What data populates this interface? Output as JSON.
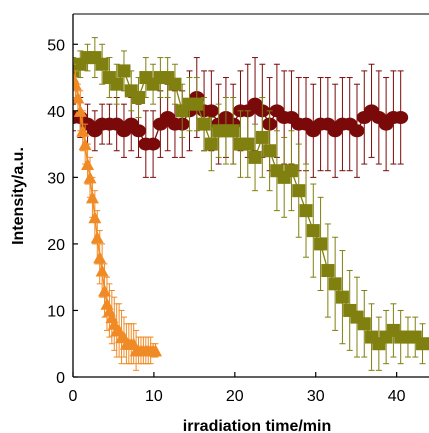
{
  "chart_data": {
    "type": "scatter",
    "title": "",
    "xlabel": "irradiation time/min",
    "ylabel": "Intensity/a.u.",
    "xlim": [
      0,
      44
    ],
    "ylim": [
      0,
      55
    ],
    "xticks": [
      0,
      10,
      20,
      30,
      40
    ],
    "yticks": [
      0,
      10,
      20,
      30,
      40,
      50
    ],
    "grid": false,
    "legend": "none",
    "series": [
      {
        "marker": "circle",
        "color": "#7a0a0a",
        "x": [
          0,
          0.9,
          1.8,
          2.7,
          3.6,
          4.5,
          5.4,
          6.3,
          7.2,
          8.1,
          9.0,
          9.9,
          10.8,
          11.7,
          12.6,
          13.5,
          14.4,
          15.3,
          16.2,
          17.1,
          18.0,
          18.9,
          19.8,
          20.7,
          21.6,
          22.5,
          23.4,
          24.3,
          25.2,
          26.1,
          27.0,
          27.9,
          28.8,
          29.7,
          30.6,
          31.5,
          32.4,
          33.3,
          34.2,
          35.1,
          36.0,
          36.9,
          37.8,
          38.7,
          39.6,
          40.5
        ],
        "y": [
          39,
          39,
          38,
          37,
          38,
          38,
          38,
          37,
          38,
          37,
          35,
          35,
          38,
          39,
          38,
          38,
          40,
          42,
          40,
          40,
          38,
          39,
          38,
          40,
          40,
          41,
          40,
          38,
          40,
          39,
          39,
          38,
          38,
          37,
          38,
          38,
          37,
          38,
          38,
          37,
          39,
          40,
          39,
          38,
          39,
          39
        ],
        "err": [
          2,
          3,
          3,
          3,
          3,
          3,
          4,
          4,
          4,
          4,
          5,
          5,
          5,
          5,
          5,
          5,
          6,
          6,
          6,
          6,
          6,
          6,
          6,
          6,
          7,
          7,
          7,
          7,
          7,
          7,
          7,
          7,
          7,
          7,
          7,
          7,
          7,
          7,
          7,
          7,
          7,
          7,
          7,
          7,
          7,
          7
        ]
      },
      {
        "marker": "square",
        "color": "#808010",
        "x": [
          0,
          0.9,
          1.8,
          2.7,
          3.6,
          4.5,
          5.4,
          6.3,
          7.2,
          8.1,
          9.0,
          9.9,
          10.8,
          11.7,
          12.6,
          13.5,
          14.4,
          15.3,
          16.2,
          17.1,
          18.0,
          18.9,
          19.8,
          20.7,
          21.6,
          22.5,
          23.4,
          24.3,
          25.2,
          26.1,
          27.0,
          27.9,
          28.8,
          29.7,
          30.6,
          31.5,
          32.4,
          33.3,
          34.2,
          35.1,
          36.0,
          36.9,
          37.8,
          38.7,
          39.6,
          40.5,
          41.4,
          42.3,
          43.2
        ],
        "y": [
          46,
          47,
          48,
          48,
          47,
          45,
          44,
          46,
          43,
          42,
          45,
          44,
          45,
          45,
          44,
          40,
          41,
          41,
          38,
          35,
          37,
          37,
          37,
          35,
          35,
          33,
          36,
          34,
          31,
          30,
          31,
          28,
          25,
          22,
          20,
          16,
          14,
          12,
          10,
          9,
          8,
          6,
          5,
          6,
          7,
          6,
          6,
          6,
          5
        ],
        "err": [
          2,
          2,
          2,
          3,
          3,
          3,
          3,
          3,
          3,
          3,
          3,
          3,
          3,
          3,
          3,
          4,
          4,
          4,
          4,
          4,
          4,
          5,
          5,
          5,
          5,
          5,
          6,
          6,
          6,
          6,
          6,
          7,
          7,
          7,
          7,
          7,
          7,
          7,
          6,
          6,
          5,
          5,
          4,
          4,
          4,
          4,
          3,
          3,
          3
        ]
      },
      {
        "marker": "triangle",
        "color": "#f08a24",
        "x": [
          0,
          0.3,
          0.6,
          0.9,
          1.2,
          1.5,
          1.8,
          2.1,
          2.4,
          2.7,
          3.0,
          3.3,
          3.6,
          3.9,
          4.2,
          4.5,
          4.8,
          5.1,
          5.4,
          5.7,
          6.0,
          6.3,
          6.6,
          6.9,
          7.2,
          7.5,
          7.8,
          8.1,
          8.4,
          8.7,
          9.0,
          9.3,
          9.6,
          9.9,
          10.2
        ],
        "y": [
          45,
          44,
          42,
          40,
          37,
          35,
          32,
          30,
          27,
          24,
          21,
          18,
          16,
          13,
          11,
          10,
          9,
          8,
          7,
          7,
          6,
          6,
          5,
          5,
          5,
          5,
          4,
          4,
          4,
          4,
          4,
          4,
          4,
          4,
          4
        ],
        "err": [
          2,
          2,
          2,
          3,
          3,
          3,
          3,
          3,
          3,
          4,
          4,
          4,
          4,
          4,
          4,
          4,
          4,
          4,
          4,
          4,
          4,
          3,
          3,
          3,
          3,
          3,
          3,
          2,
          2,
          2,
          2,
          2,
          2,
          1,
          1
        ]
      }
    ]
  }
}
